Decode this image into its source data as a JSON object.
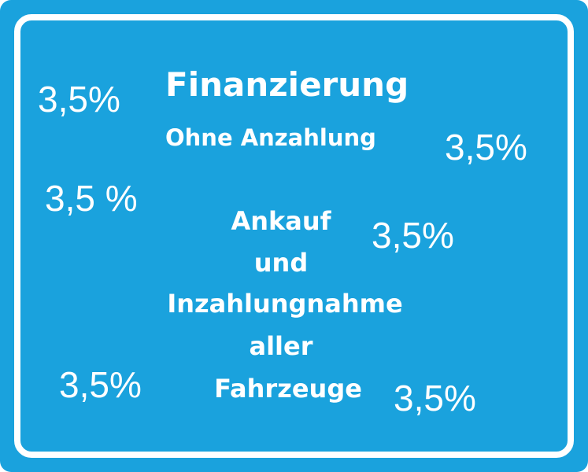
{
  "sign": {
    "title": "Finanzierung",
    "subtitle": "Ohne Anzahlung",
    "service_lines": [
      "Ankauf",
      "und",
      "Inzahlungnahme",
      "aller",
      "Fahrzeuge"
    ],
    "rates": [
      "3,5%",
      "3,5%",
      "3,5 %",
      "3,5%",
      "3,5%",
      "3,5%"
    ]
  }
}
